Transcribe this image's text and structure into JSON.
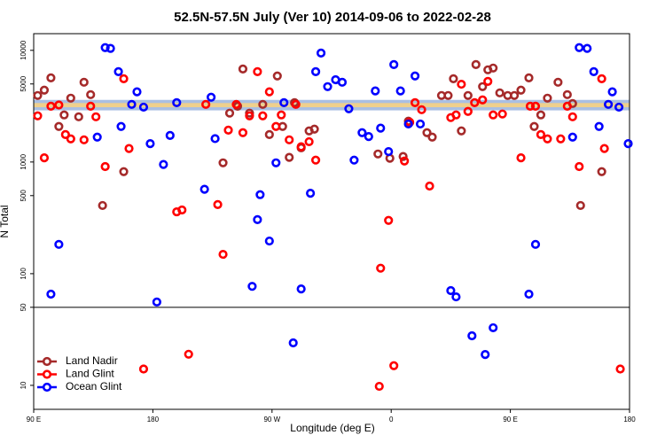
{
  "chart_data": {
    "type": "scatter",
    "title": "52.5N-57.5N July (Ver 10)   2014-09-06 to 2022-02-28",
    "x_label": "Longitude (deg E)",
    "y_label": "N Total",
    "log_y": true,
    "xlim": [
      90,
      540
    ],
    "ylim": [
      6.1,
      14100
    ],
    "xticks": [
      {
        "value": 90,
        "label": "90 E"
      },
      180,
      {
        "value": 270,
        "label": "90 W"
      },
      {
        "value": 360,
        "label": "0"
      },
      {
        "value": 450,
        "label": "90 E"
      },
      {
        "value": 540,
        "label": "180"
      }
    ],
    "yticks": [
      10,
      50,
      100,
      500,
      1000,
      5000,
      10000
    ],
    "hline": 50,
    "band": {
      "range": [
        2900,
        3600
      ],
      "colors": [
        "#a9bfe3",
        "#fcd27e"
      ]
    },
    "legend": "lower left",
    "series": [
      {
        "name": "Land Nadir",
        "color": "#a52a2a",
        "x": [
          93,
          98,
          103,
          109,
          113,
          118,
          124,
          128,
          133,
          142,
          158,
          233,
          238,
          244,
          248,
          253,
          263,
          268,
          274,
          278,
          283,
          287,
          292,
          298,
          302,
          350,
          359,
          369,
          373,
          387,
          391,
          398,
          403,
          407,
          413,
          418,
          424,
          429,
          433,
          437,
          442,
          448,
          453,
          458,
          464,
          468,
          473,
          478,
          486,
          493,
          497,
          503,
          519
        ],
        "values": [
          3940,
          4400,
          5670,
          2080,
          2640,
          3730,
          2540,
          5180,
          4010,
          408,
          819,
          983,
          2740,
          3160,
          6810,
          2740,
          3280,
          1760,
          5890,
          2080,
          1100,
          3400,
          1340,
          1900,
          1970,
          1180,
          1080,
          1120,
          2320,
          1830,
          1670,
          3940,
          3940,
          5570,
          1900,
          3940,
          7460,
          4730,
          6690,
          6940,
          4160,
          3940,
          3940,
          4400,
          5670,
          2080,
          2640,
          3730,
          5180,
          4010,
          3340,
          408,
          819
        ]
      },
      {
        "name": "Land Glint",
        "color": "#ff0000",
        "x": [
          93,
          98,
          103,
          109,
          114,
          118,
          128,
          133,
          137,
          144,
          158,
          162,
          173,
          198,
          202,
          207,
          220,
          229,
          233,
          237,
          243,
          248,
          253,
          259,
          263,
          268,
          273,
          277,
          283,
          288,
          292,
          298,
          303,
          351,
          352,
          358,
          362,
          370,
          374,
          378,
          383,
          389,
          405,
          409,
          413,
          418,
          423,
          429,
          433,
          437,
          444,
          458,
          465,
          469,
          473,
          478,
          488,
          493,
          497,
          502,
          519,
          521,
          533
        ],
        "values": [
          2590,
          1090,
          3160,
          3240,
          1760,
          1610,
          1580,
          3160,
          2540,
          910,
          5570,
          1320,
          14,
          358,
          372,
          19,
          3280,
          416,
          149,
          1930,
          3280,
          1830,
          2590,
          6440,
          2590,
          4250,
          2080,
          2640,
          1580,
          3280,
          1370,
          1520,
          1040,
          9.8,
          112,
          300,
          15,
          1020,
          2270,
          3400,
          2940,
          609,
          2500,
          2640,
          4970,
          2840,
          3400,
          3600,
          5270,
          2640,
          2690,
          1090,
          3160,
          3160,
          1760,
          1610,
          1610,
          3160,
          2540,
          910,
          5570,
          1320,
          14
        ]
      },
      {
        "name": "Ocean Glint",
        "color": "#0000ff",
        "x": [
          103,
          109,
          138,
          144,
          148,
          154,
          156,
          164,
          168,
          173,
          178,
          183,
          188,
          193,
          198,
          219,
          224,
          227,
          255,
          259,
          261,
          268,
          273,
          279,
          286,
          292,
          299,
          303,
          307,
          312,
          318,
          323,
          328,
          332,
          338,
          343,
          348,
          352,
          358,
          362,
          367,
          373,
          378,
          382,
          405,
          409,
          421,
          431,
          437,
          464,
          469,
          497,
          502,
          508,
          513,
          517,
          524,
          527,
          532,
          539
        ],
        "values": [
          65.6,
          183,
          1670,
          10570,
          10400,
          6440,
          2080,
          3280,
          4250,
          3100,
          1460,
          55.8,
          950,
          1730,
          3400,
          570,
          3800,
          1620,
          77,
          305,
          510,
          196,
          983,
          3400,
          24,
          73,
          525,
          6440,
          9460,
          4730,
          5450,
          5180,
          3000,
          1040,
          1830,
          1690,
          4330,
          2010,
          1240,
          7460,
          4330,
          2190,
          5890,
          2190,
          70.5,
          62,
          27.8,
          18.9,
          32.8,
          65.6,
          183,
          1670,
          10570,
          10400,
          6440,
          2080,
          3280,
          4250,
          3100,
          1460
        ]
      }
    ]
  }
}
